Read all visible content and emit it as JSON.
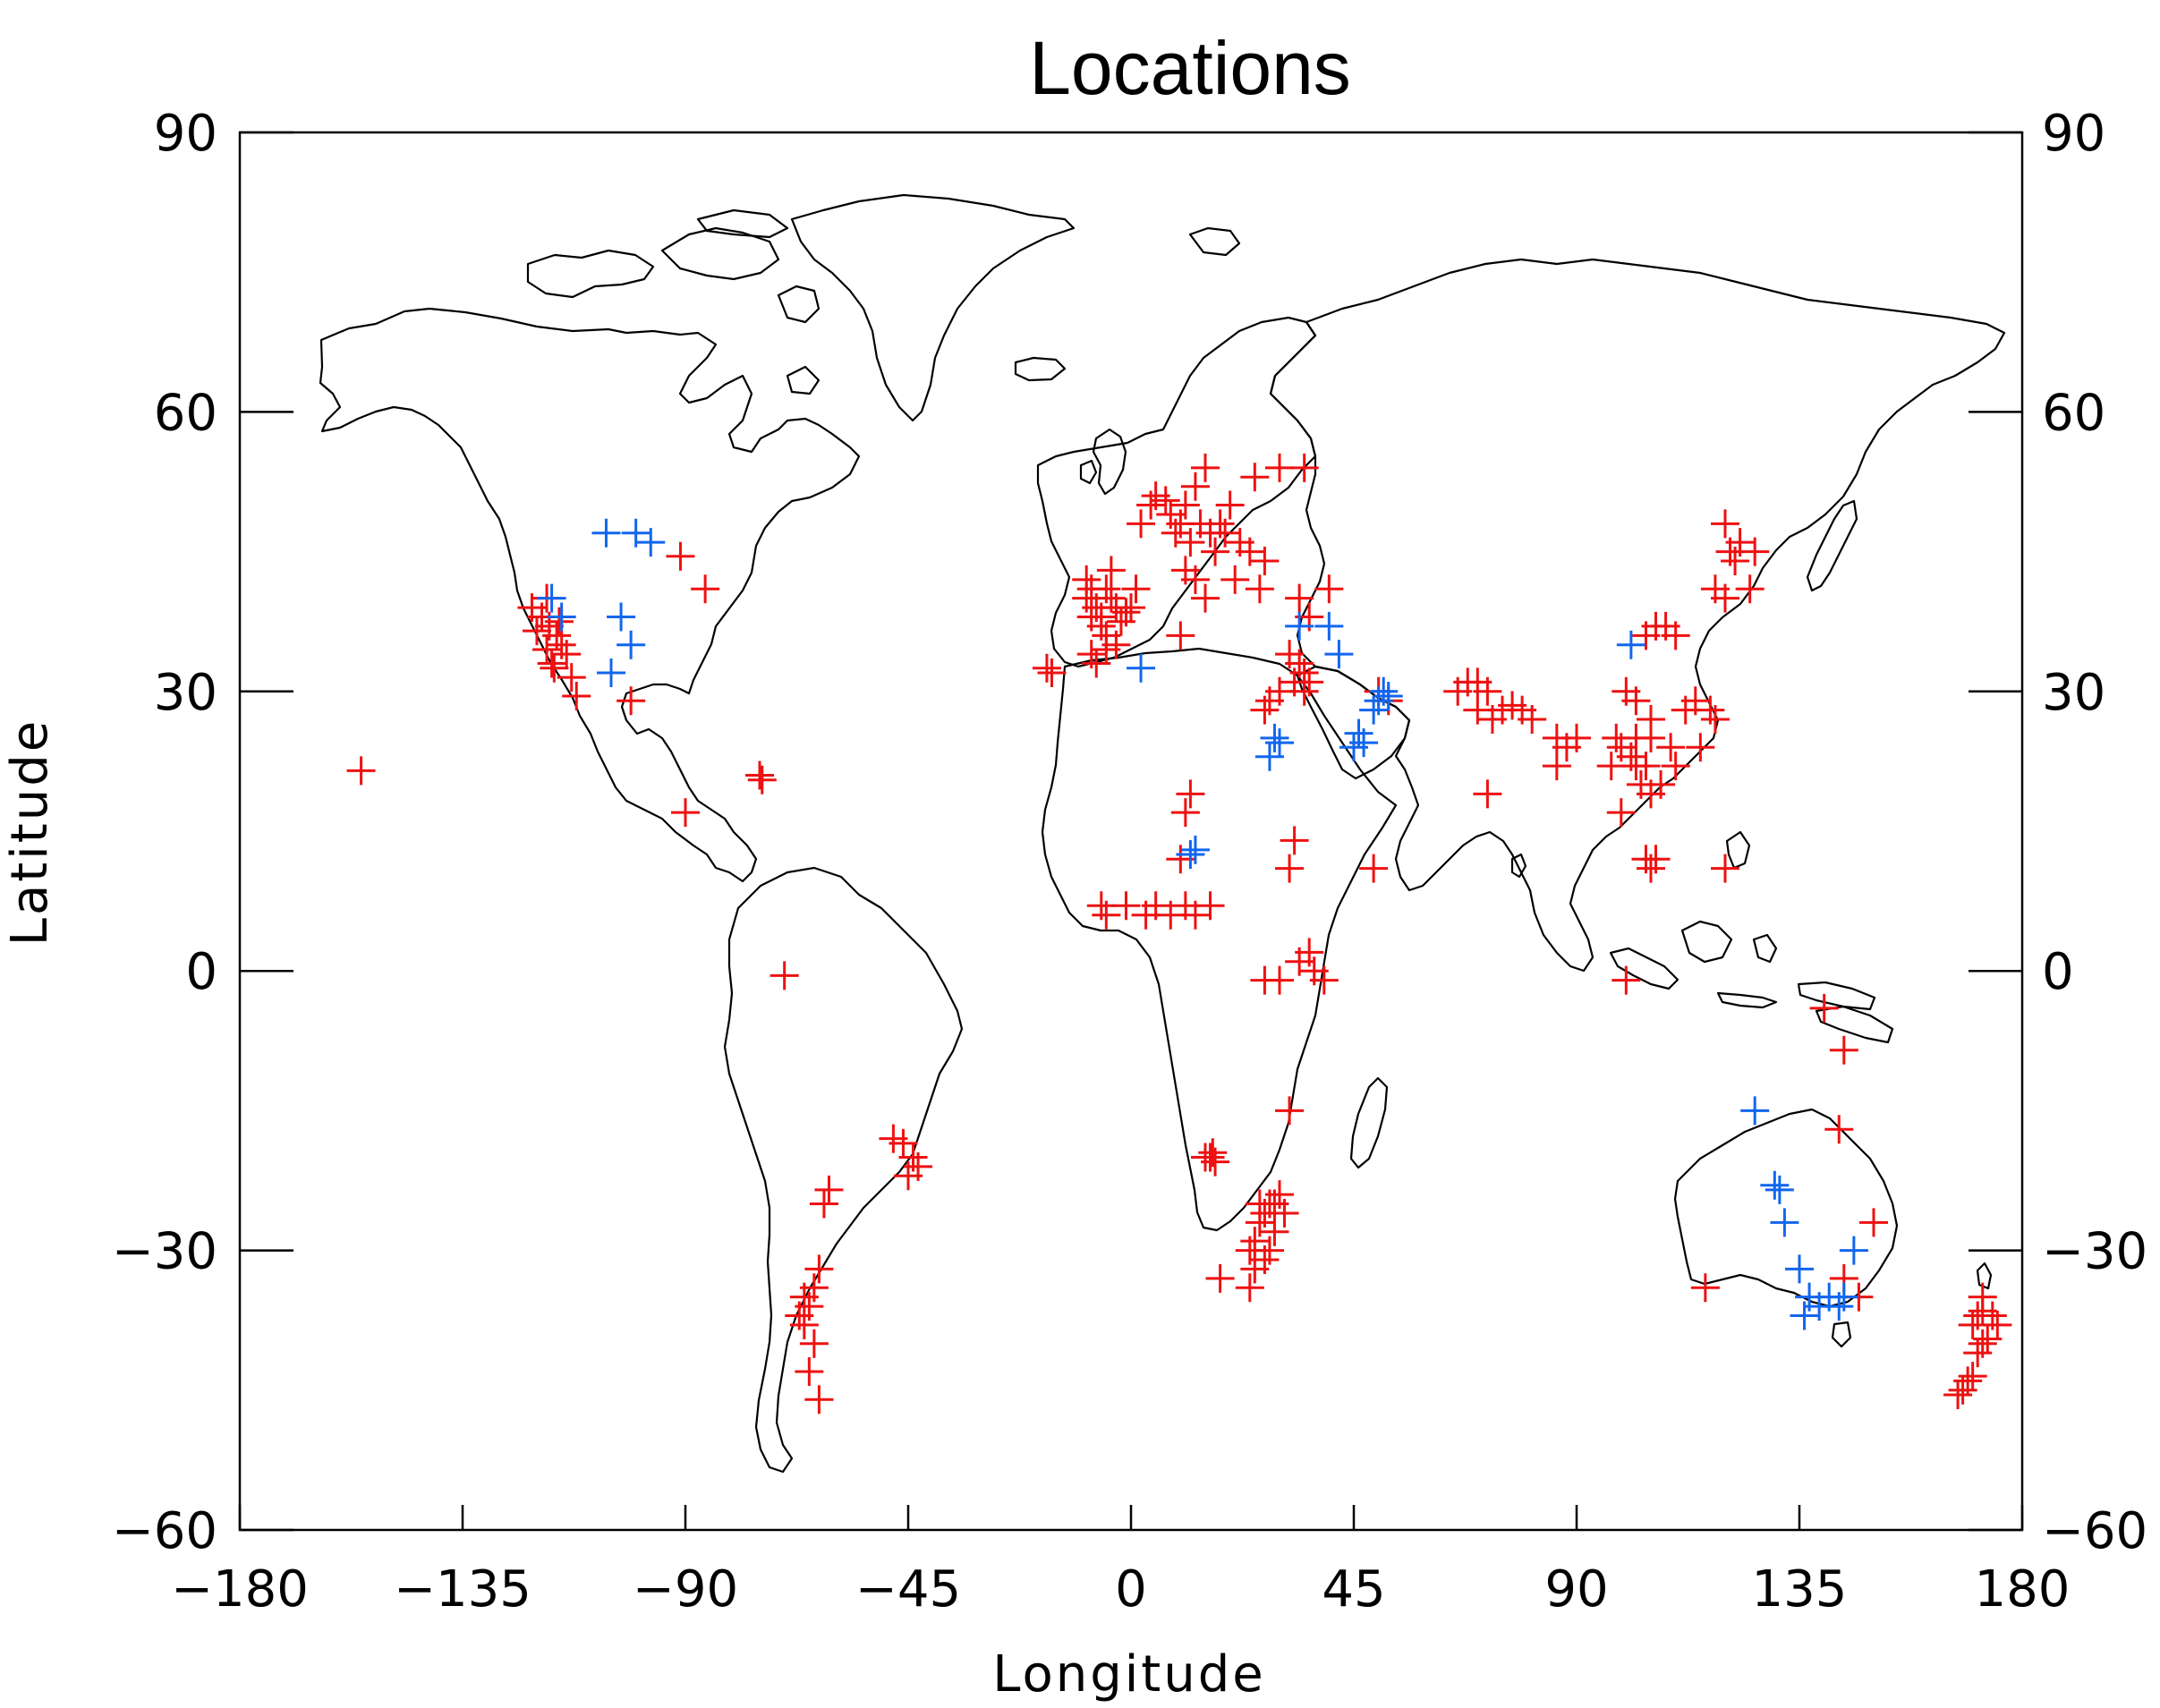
{
  "chart_data": {
    "type": "scatter",
    "title": "Locations",
    "xlabel": "Longitude",
    "ylabel": "Latitude",
    "xlim": [
      -180,
      180
    ],
    "ylim": [
      -60,
      90
    ],
    "xticks": [
      "−180",
      "−135",
      "−90",
      "−45",
      "0",
      "45",
      "90",
      "135",
      "180"
    ],
    "yticks": [
      "90",
      "60",
      "30",
      "0",
      "−30",
      "−60"
    ],
    "xtick_values": [
      -180,
      -135,
      -90,
      -45,
      0,
      45,
      90,
      135,
      180
    ],
    "ytick_values": [
      90,
      60,
      30,
      0,
      -30,
      -60
    ],
    "marker": "plus",
    "colors": {
      "red": "#ee1111",
      "blue": "#1166ee",
      "axes": "#000000"
    },
    "series": [
      {
        "color": "#ee1111",
        "points": [
          [
            -155.5,
            21.5
          ],
          [
            -118,
            40
          ],
          [
            -119,
            38
          ],
          [
            -117.5,
            37
          ],
          [
            -116,
            36
          ],
          [
            -118,
            34.5
          ],
          [
            -117,
            33
          ],
          [
            -115,
            35
          ],
          [
            -114,
            34
          ],
          [
            -116.5,
            32.5
          ],
          [
            -113,
            31.5
          ],
          [
            -112,
            29.5
          ],
          [
            -121,
            39
          ],
          [
            -120,
            36.5
          ],
          [
            -115.5,
            37.5
          ],
          [
            -91,
            44.5
          ],
          [
            -86,
            41
          ],
          [
            -101,
            29
          ],
          [
            -90,
            17
          ],
          [
            -74.5,
            20.5
          ],
          [
            -75,
            21
          ],
          [
            -70,
            -0.5
          ],
          [
            -61,
            -23.5
          ],
          [
            -62,
            -25
          ],
          [
            -48,
            -18
          ],
          [
            -46,
            -18.5
          ],
          [
            -44,
            -20
          ],
          [
            -43,
            -21
          ],
          [
            -45,
            -22
          ],
          [
            -66,
            -35
          ],
          [
            -65,
            -36
          ],
          [
            -67,
            -37
          ],
          [
            -64,
            -34
          ],
          [
            -63,
            -32
          ],
          [
            -66,
            -38
          ],
          [
            -64,
            -40
          ],
          [
            -65,
            -43
          ],
          [
            -63,
            -46
          ],
          [
            -17,
            32.5
          ],
          [
            -16,
            32
          ],
          [
            -9,
            40
          ],
          [
            -8,
            41
          ],
          [
            -7,
            39
          ],
          [
            -6,
            38
          ],
          [
            -5,
            41
          ],
          [
            -4,
            40
          ],
          [
            -3,
            39
          ],
          [
            -2,
            37.5
          ],
          [
            -1,
            38.5
          ],
          [
            0,
            39
          ],
          [
            1,
            41
          ],
          [
            -5,
            36
          ],
          [
            -6,
            37
          ],
          [
            -8,
            38
          ],
          [
            -9,
            42
          ],
          [
            -4,
            43
          ],
          [
            -7,
            33
          ],
          [
            -8,
            34
          ],
          [
            -5,
            34.5
          ],
          [
            -3,
            35
          ],
          [
            2,
            48
          ],
          [
            4,
            50
          ],
          [
            5,
            51
          ],
          [
            7,
            50.5
          ],
          [
            8,
            49
          ],
          [
            10,
            48
          ],
          [
            9,
            47
          ],
          [
            11,
            50
          ],
          [
            12,
            46
          ],
          [
            13,
            52
          ],
          [
            14,
            48
          ],
          [
            15,
            54
          ],
          [
            16,
            47
          ],
          [
            18,
            48
          ],
          [
            19,
            47
          ],
          [
            20,
            50
          ],
          [
            22,
            46
          ],
          [
            24,
            45
          ],
          [
            25,
            53
          ],
          [
            17,
            45
          ],
          [
            21,
            42
          ],
          [
            11,
            43
          ],
          [
            13,
            42
          ],
          [
            15,
            40
          ],
          [
            10,
            36
          ],
          [
            27,
            44
          ],
          [
            30,
            54
          ],
          [
            35,
            54
          ],
          [
            26,
            41
          ],
          [
            34,
            40
          ],
          [
            40,
            41
          ],
          [
            36,
            38
          ],
          [
            32,
            34
          ],
          [
            34,
            33
          ],
          [
            35,
            32
          ],
          [
            33,
            31
          ],
          [
            36,
            31
          ],
          [
            30,
            30
          ],
          [
            35,
            30
          ],
          [
            50,
            30
          ],
          [
            52,
            29
          ],
          [
            12,
            19
          ],
          [
            11,
            17
          ],
          [
            10,
            12
          ],
          [
            5,
            7
          ],
          [
            3,
            6
          ],
          [
            -1,
            7
          ],
          [
            -6,
            7
          ],
          [
            -5,
            6
          ],
          [
            8,
            6
          ],
          [
            11,
            7
          ],
          [
            13,
            6
          ],
          [
            16,
            7
          ],
          [
            27,
            28
          ],
          [
            28,
            29
          ],
          [
            33,
            14
          ],
          [
            32,
            11
          ],
          [
            36,
            2
          ],
          [
            34,
            1
          ],
          [
            37,
            0
          ],
          [
            27,
            -1
          ],
          [
            30,
            -1
          ],
          [
            39,
            -1
          ],
          [
            49,
            11
          ],
          [
            32,
            -15
          ],
          [
            18,
            -33
          ],
          [
            24,
            -34
          ],
          [
            25,
            -32
          ],
          [
            28,
            -30
          ],
          [
            27,
            -26
          ],
          [
            26,
            -25
          ],
          [
            25,
            -29
          ],
          [
            26,
            -27
          ],
          [
            28,
            -25
          ],
          [
            31,
            -26
          ],
          [
            30,
            -24
          ],
          [
            29,
            -28
          ],
          [
            27,
            -31
          ],
          [
            24,
            -30
          ],
          [
            29,
            -25
          ],
          [
            16,
            -20
          ],
          [
            17,
            -20.5
          ],
          [
            15,
            -20
          ],
          [
            16.5,
            -19.5
          ],
          [
            66,
            30
          ],
          [
            68,
            31
          ],
          [
            70,
            31
          ],
          [
            72,
            30
          ],
          [
            70,
            28
          ],
          [
            73,
            27
          ],
          [
            75,
            28
          ],
          [
            77,
            28.5
          ],
          [
            79,
            28
          ],
          [
            81,
            27
          ],
          [
            86,
            25
          ],
          [
            88,
            24
          ],
          [
            90,
            25
          ],
          [
            86,
            22
          ],
          [
            72,
            19
          ],
          [
            100,
            30
          ],
          [
            102,
            29
          ],
          [
            98,
            25
          ],
          [
            99,
            24
          ],
          [
            101,
            23
          ],
          [
            102,
            22
          ],
          [
            103,
            20
          ],
          [
            104,
            22
          ],
          [
            105,
            25
          ],
          [
            97,
            22
          ],
          [
            99,
            17
          ],
          [
            102,
            25
          ],
          [
            105,
            27
          ],
          [
            104,
            36
          ],
          [
            106,
            37
          ],
          [
            108,
            37
          ],
          [
            110,
            36
          ],
          [
            112,
            28
          ],
          [
            114,
            29
          ],
          [
            115,
            24
          ],
          [
            109,
            24
          ],
          [
            110,
            22
          ],
          [
            107,
            20
          ],
          [
            105,
            19
          ],
          [
            104,
            12
          ],
          [
            105,
            11
          ],
          [
            106,
            12
          ],
          [
            100,
            -1
          ],
          [
            120,
            48
          ],
          [
            121,
            45
          ],
          [
            122,
            44
          ],
          [
            123,
            46
          ],
          [
            126,
            45
          ],
          [
            125,
            41
          ],
          [
            120,
            40
          ],
          [
            118,
            41
          ],
          [
            117,
            28
          ],
          [
            118,
            27
          ],
          [
            120,
            11
          ],
          [
            140,
            -4
          ],
          [
            144,
            -8.5
          ],
          [
            143,
            -17
          ],
          [
            150,
            -27
          ],
          [
            144,
            -33
          ],
          [
            147,
            -35
          ],
          [
            116,
            -34
          ],
          [
            167,
            -45.5
          ],
          [
            168,
            -45
          ],
          [
            169,
            -44
          ],
          [
            170,
            -43.5
          ],
          [
            171,
            -41
          ],
          [
            172,
            -40
          ],
          [
            173,
            -39.5
          ],
          [
            170,
            -38
          ],
          [
            171,
            -37
          ],
          [
            172,
            -36.5
          ],
          [
            174,
            -37
          ],
          [
            175,
            -38
          ],
          [
            172,
            -35
          ]
        ]
      },
      {
        "color": "#1166ee",
        "points": [
          [
            -106,
            47
          ],
          [
            -100,
            47
          ],
          [
            -97,
            46
          ],
          [
            -115,
            38
          ],
          [
            -117,
            40
          ],
          [
            -103,
            38
          ],
          [
            -101,
            35
          ],
          [
            -105,
            32
          ],
          [
            2,
            32.5
          ],
          [
            13,
            13
          ],
          [
            12,
            12.5
          ],
          [
            34,
            37
          ],
          [
            40,
            37
          ],
          [
            42,
            34
          ],
          [
            28,
            23
          ],
          [
            29,
            25
          ],
          [
            30,
            24.5
          ],
          [
            45,
            24
          ],
          [
            46,
            25.5
          ],
          [
            47,
            24.5
          ],
          [
            50,
            29
          ],
          [
            51,
            30
          ],
          [
            52,
            29.5
          ],
          [
            49,
            28
          ],
          [
            101,
            35
          ],
          [
            126,
            -15
          ],
          [
            130,
            -23
          ],
          [
            131,
            -23.5
          ],
          [
            132,
            -27
          ],
          [
            135,
            -32
          ],
          [
            137,
            -35
          ],
          [
            136,
            -37
          ],
          [
            139,
            -36
          ],
          [
            141,
            -35
          ],
          [
            143,
            -36
          ],
          [
            146,
            -30
          ],
          [
            144,
            -35
          ]
        ]
      }
    ]
  }
}
